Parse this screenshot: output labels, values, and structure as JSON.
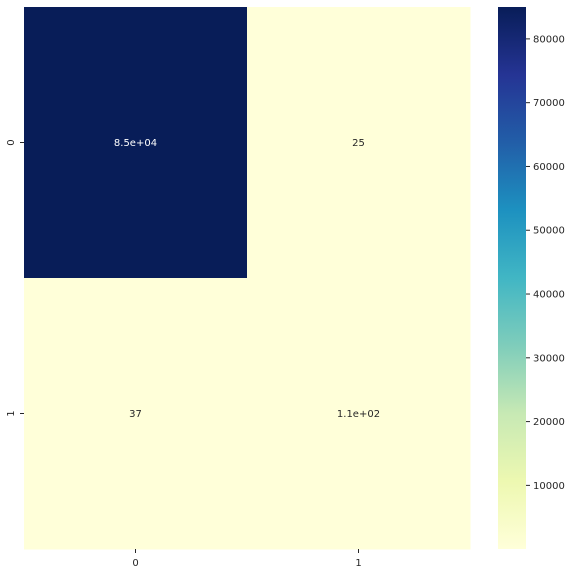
{
  "chart_data": {
    "type": "heatmap",
    "title": "",
    "xlabel": "",
    "ylabel": "",
    "x_categories": [
      "0",
      "1"
    ],
    "y_categories": [
      "0",
      "1"
    ],
    "values": [
      [
        85000,
        25
      ],
      [
        37,
        110
      ]
    ],
    "annotations": [
      [
        "8.5e+04",
        "25"
      ],
      [
        "37",
        "1.1e+02"
      ]
    ],
    "colormap": "YlGnBu",
    "color_low": "#ffffd9",
    "color_high": "#081d58",
    "colorbar": {
      "range": [
        25,
        85000
      ],
      "ticks": [
        10000,
        20000,
        30000,
        40000,
        50000,
        60000,
        70000,
        80000
      ],
      "tick_labels": [
        "10000",
        "20000",
        "30000",
        "40000",
        "50000",
        "60000",
        "70000",
        "80000"
      ]
    }
  }
}
